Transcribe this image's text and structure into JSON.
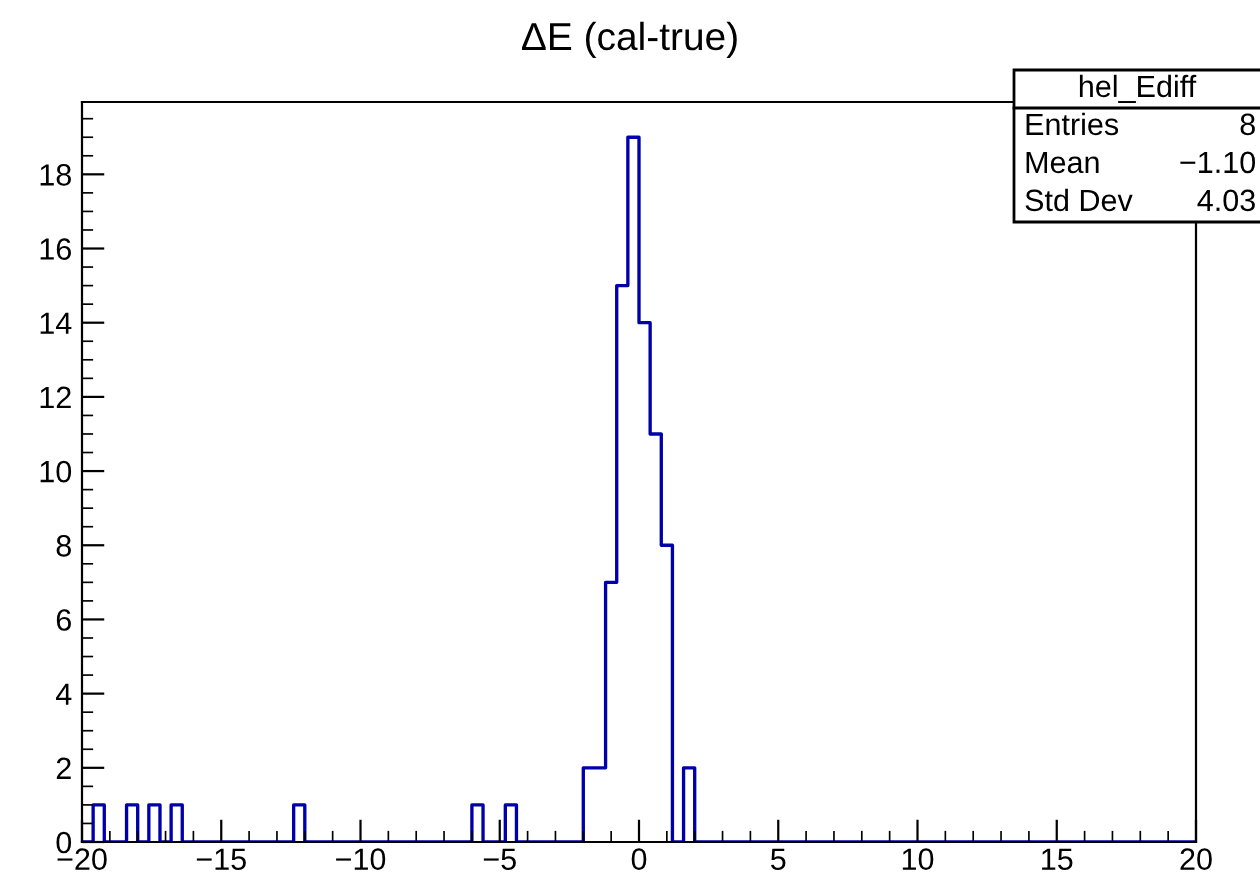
{
  "chart_data": {
    "type": "histogram",
    "title": "ΔE (cal-true)",
    "bins": [
      -20,
      -19.6,
      -19.2,
      -18.8,
      -18.4,
      -18,
      -17.6,
      -17.2,
      -16.8,
      -16.4,
      -16,
      -15.6,
      -15.2,
      -14.8,
      -14.4,
      -14,
      -13.6,
      -13.2,
      -12.8,
      -12.4,
      -12,
      -11.6,
      -11.2,
      -10.8,
      -10.4,
      -10,
      -9.6,
      -9.2,
      -8.8,
      -8.4,
      -8,
      -7.6,
      -7.2,
      -6.8,
      -6.4,
      -6,
      -5.6,
      -5.2,
      -4.8,
      -4.4,
      -4,
      -3.6,
      -3.2,
      -2.8,
      -2.4,
      -2,
      -1.6,
      -1.2,
      -0.8,
      -0.4,
      0,
      0.4,
      0.8,
      1.2,
      1.6,
      2,
      2.4,
      2.8,
      3.2,
      3.6,
      4,
      4.4,
      4.8,
      5.2,
      5.6,
      6,
      6.4,
      6.8,
      7.2,
      7.6,
      8,
      8.4,
      8.8,
      9.2,
      9.6,
      10,
      10.4,
      10.8,
      11.2,
      11.6,
      12,
      12.4,
      12.8,
      13.2,
      13.6,
      14,
      14.4,
      14.8,
      15.2,
      15.6,
      16,
      16.4,
      16.8,
      17.2,
      17.6,
      18,
      18.4,
      18.8,
      19.2,
      19.6,
      20
    ],
    "values": [
      0,
      1,
      0,
      0,
      1,
      0,
      1,
      0,
      1,
      0,
      0,
      0,
      0,
      0,
      0,
      0,
      0,
      0,
      0,
      1,
      0,
      0,
      0,
      0,
      0,
      0,
      0,
      0,
      0,
      0,
      0,
      0,
      0,
      0,
      0,
      1,
      0,
      0,
      1,
      0,
      0,
      0,
      0,
      0,
      0,
      2,
      2,
      7,
      15,
      19,
      14,
      11,
      8,
      0,
      2,
      0,
      0,
      0,
      0,
      0,
      0,
      0,
      0,
      0,
      0,
      0,
      0,
      0,
      0,
      0,
      0,
      0,
      0,
      0,
      0,
      0,
      0,
      0,
      0,
      0,
      0,
      0,
      0,
      0,
      0,
      0,
      0,
      0,
      0,
      0,
      0,
      0,
      0,
      0,
      0,
      0,
      0,
      0,
      0,
      0
    ],
    "color": "#0000aa",
    "xlim": [
      -20,
      20
    ],
    "xticks": [
      {
        "value": -20,
        "label": "−20"
      },
      {
        "value": -19,
        "label": null
      },
      {
        "value": -18,
        "label": null
      },
      {
        "value": -17,
        "label": null
      },
      {
        "value": -16,
        "label": null
      },
      {
        "value": -15,
        "label": "−15"
      },
      {
        "value": -14,
        "label": null
      },
      {
        "value": -13,
        "label": null
      },
      {
        "value": -12,
        "label": null
      },
      {
        "value": -11,
        "label": null
      },
      {
        "value": -10,
        "label": "−10"
      },
      {
        "value": -9,
        "label": null
      },
      {
        "value": -8,
        "label": null
      },
      {
        "value": -7,
        "label": null
      },
      {
        "value": -6,
        "label": null
      },
      {
        "value": -5,
        "label": "−5"
      },
      {
        "value": -4,
        "label": null
      },
      {
        "value": -3,
        "label": null
      },
      {
        "value": -2,
        "label": null
      },
      {
        "value": -1,
        "label": null
      },
      0,
      {
        "value": 1,
        "label": null
      },
      {
        "value": 2,
        "label": null
      },
      {
        "value": 3,
        "label": null
      },
      {
        "value": 4,
        "label": null
      },
      5,
      {
        "value": 6,
        "label": null
      },
      {
        "value": 7,
        "label": null
      },
      {
        "value": 8,
        "label": null
      },
      {
        "value": 9,
        "label": null
      },
      10,
      {
        "value": 11,
        "label": null
      },
      {
        "value": 12,
        "label": null
      },
      {
        "value": 13,
        "label": null
      },
      {
        "value": 14,
        "label": null
      },
      15,
      {
        "value": 16,
        "label": null
      },
      {
        "value": 17,
        "label": null
      },
      {
        "value": 18,
        "label": null
      },
      {
        "value": 19,
        "label": null
      },
      20
    ],
    "ylim": [
      0,
      19.95
    ],
    "yticks": [
      0,
      {
        "value": 0.5,
        "label": null
      },
      {
        "value": 1,
        "label": null
      },
      {
        "value": 1.5,
        "label": null
      },
      2,
      {
        "value": 2.5,
        "label": null
      },
      {
        "value": 3,
        "label": null
      },
      {
        "value": 3.5,
        "label": null
      },
      4,
      {
        "value": 4.5,
        "label": null
      },
      {
        "value": 5,
        "label": null
      },
      {
        "value": 5.5,
        "label": null
      },
      6,
      {
        "value": 6.5,
        "label": null
      },
      {
        "value": 7,
        "label": null
      },
      {
        "value": 7.5,
        "label": null
      },
      8,
      {
        "value": 8.5,
        "label": null
      },
      {
        "value": 9,
        "label": null
      },
      {
        "value": 9.5,
        "label": null
      },
      10,
      {
        "value": 10.5,
        "label": null
      },
      {
        "value": 11,
        "label": null
      },
      {
        "value": 11.5,
        "label": null
      },
      12,
      {
        "value": 12.5,
        "label": null
      },
      {
        "value": 13,
        "label": null
      },
      {
        "value": 13.5,
        "label": null
      },
      14,
      {
        "value": 14.5,
        "label": null
      },
      {
        "value": 15,
        "label": null
      },
      {
        "value": 15.5,
        "label": null
      },
      16,
      {
        "value": 16.5,
        "label": null
      },
      {
        "value": 17,
        "label": null
      },
      {
        "value": 17.5,
        "label": null
      },
      18,
      {
        "value": 18.5,
        "label": null
      },
      {
        "value": 19,
        "label": null
      },
      {
        "value": 19.5,
        "label": null
      }
    ],
    "grid": false,
    "annotations": [
      "hel_Ediff",
      "Entries",
      "8",
      "Mean",
      "−1.10",
      "Std Dev",
      "4.03"
    ]
  }
}
